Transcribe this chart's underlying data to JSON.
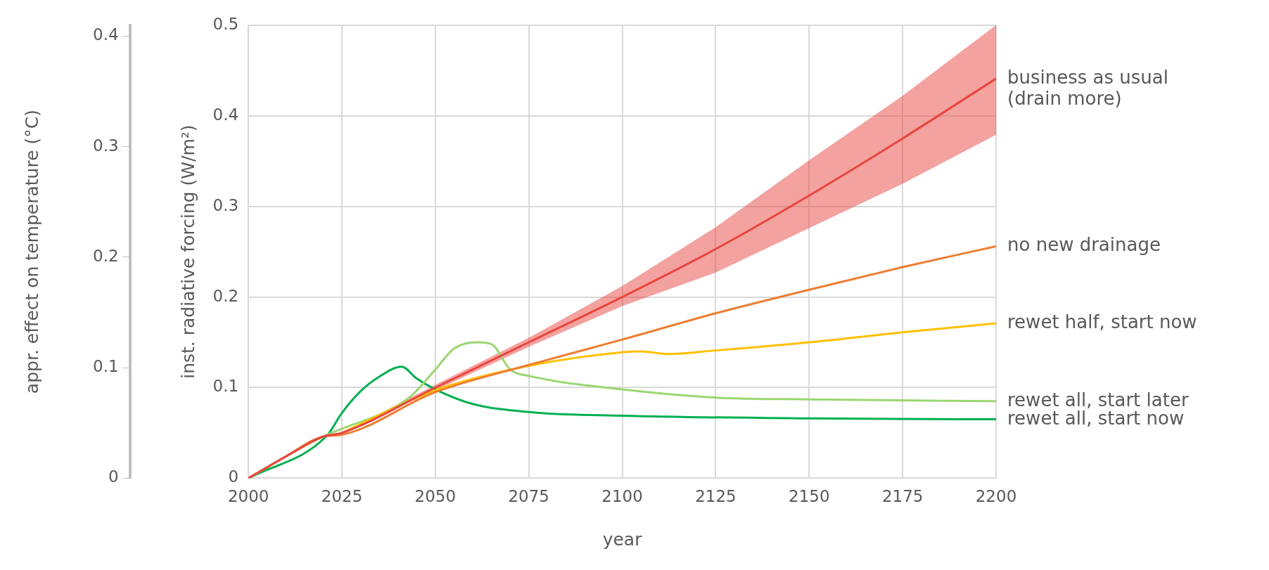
{
  "chart_data": {
    "type": "line",
    "xlabel": "year",
    "ylabel": "inst. radiative forcing (W/m²)",
    "y2label": "appr. effect on temperature (°C)",
    "xlim": [
      2000,
      2200
    ],
    "xticks": [
      2000,
      2025,
      2050,
      2075,
      2100,
      2125,
      2150,
      2175,
      2200
    ],
    "ylim": [
      0,
      0.5
    ],
    "yticks": [
      0,
      0.1,
      0.2,
      0.3,
      0.4,
      0.5
    ],
    "y2lim": [
      0,
      0.41
    ],
    "y2ticks": [
      0,
      0.1,
      0.2,
      0.3,
      0.4
    ],
    "grid": true,
    "marker": "none",
    "line_style": "solid",
    "series": [
      {
        "name": "business as usual (drain more)",
        "color": "#e8453f",
        "x": [
          2000,
          2010,
          2020,
          2025,
          2050,
          2075,
          2100,
          2125,
          2150,
          2175,
          2200
        ],
        "values": [
          0,
          0.024,
          0.046,
          0.05,
          0.1,
          0.15,
          0.2,
          0.253,
          0.312,
          0.375,
          0.441
        ],
        "lower": [
          0,
          0.024,
          0.046,
          0.05,
          0.097,
          0.145,
          0.19,
          0.227,
          0.276,
          0.325,
          0.379
        ],
        "upper": [
          0,
          0.024,
          0.046,
          0.05,
          0.103,
          0.155,
          0.212,
          0.277,
          0.351,
          0.422,
          0.5
        ]
      },
      {
        "name": "no new drainage",
        "color": "#ed7d31",
        "x": [
          2000,
          2010,
          2020,
          2025,
          2050,
          2075,
          2100,
          2125,
          2150,
          2175,
          2200
        ],
        "values": [
          0,
          0.024,
          0.046,
          0.048,
          0.095,
          0.125,
          0.153,
          0.182,
          0.208,
          0.233,
          0.256
        ]
      },
      {
        "name": "rewet half, start now",
        "color": "#ffc000",
        "x": [
          2025,
          2050,
          2075,
          2100,
          2105,
          2112,
          2125,
          2150,
          2175,
          2200
        ],
        "values": [
          0.05,
          0.097,
          0.124,
          0.139,
          0.14,
          0.137,
          0.141,
          0.15,
          0.161,
          0.171
        ]
      },
      {
        "name": "rewet all, start later",
        "color": "#9bd672",
        "x": [
          2000,
          2010,
          2020,
          2043,
          2050,
          2055,
          2061,
          2065,
          2070,
          2075,
          2100,
          2125,
          2150,
          2200
        ],
        "values": [
          0,
          0.024,
          0.046,
          0.089,
          0.12,
          0.143,
          0.15,
          0.148,
          0.12,
          0.113,
          0.098,
          0.089,
          0.087,
          0.085
        ]
      },
      {
        "name": "rewet all, start now",
        "color": "#00b050",
        "x": [
          2000,
          2021,
          2025,
          2030,
          2035,
          2041,
          2045,
          2050,
          2060,
          2075,
          2100,
          2150,
          2200
        ],
        "values": [
          0,
          0.047,
          0.072,
          0.096,
          0.112,
          0.123,
          0.11,
          0.098,
          0.082,
          0.073,
          0.069,
          0.066,
          0.065
        ]
      }
    ]
  }
}
